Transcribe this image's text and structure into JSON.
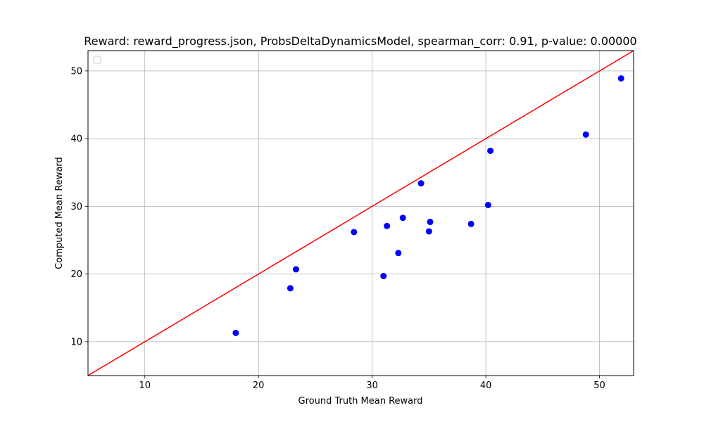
{
  "chart_data": {
    "type": "scatter",
    "title": "Reward: reward_progress.json, ProbsDeltaDynamicsModel, spearman_corr: 0.91, p-value: 0.00000",
    "xlabel": "Ground Truth Mean Reward",
    "ylabel": "Computed Mean Reward",
    "xlim": [
      5,
      53
    ],
    "ylim": [
      5,
      53
    ],
    "xticks": [
      10,
      20,
      30,
      40,
      50
    ],
    "yticks": [
      10,
      20,
      30,
      40,
      50
    ],
    "grid": true,
    "legend": {
      "placement": "top-left",
      "entries": []
    },
    "reference_line": {
      "color": "#ff0000",
      "x": [
        5,
        53
      ],
      "y": [
        5,
        53
      ]
    },
    "series": [
      {
        "color": "#0000ff",
        "points": [
          {
            "x": 18.0,
            "y": 11.3
          },
          {
            "x": 22.8,
            "y": 17.9
          },
          {
            "x": 23.3,
            "y": 20.7
          },
          {
            "x": 28.4,
            "y": 26.2
          },
          {
            "x": 31.0,
            "y": 19.7
          },
          {
            "x": 31.3,
            "y": 27.1
          },
          {
            "x": 32.3,
            "y": 23.1
          },
          {
            "x": 32.7,
            "y": 28.3
          },
          {
            "x": 34.3,
            "y": 33.4
          },
          {
            "x": 35.0,
            "y": 26.3
          },
          {
            "x": 35.1,
            "y": 27.7
          },
          {
            "x": 38.7,
            "y": 27.4
          },
          {
            "x": 40.2,
            "y": 30.2
          },
          {
            "x": 40.4,
            "y": 38.2
          },
          {
            "x": 48.8,
            "y": 40.6
          },
          {
            "x": 51.9,
            "y": 48.9
          }
        ]
      }
    ]
  }
}
